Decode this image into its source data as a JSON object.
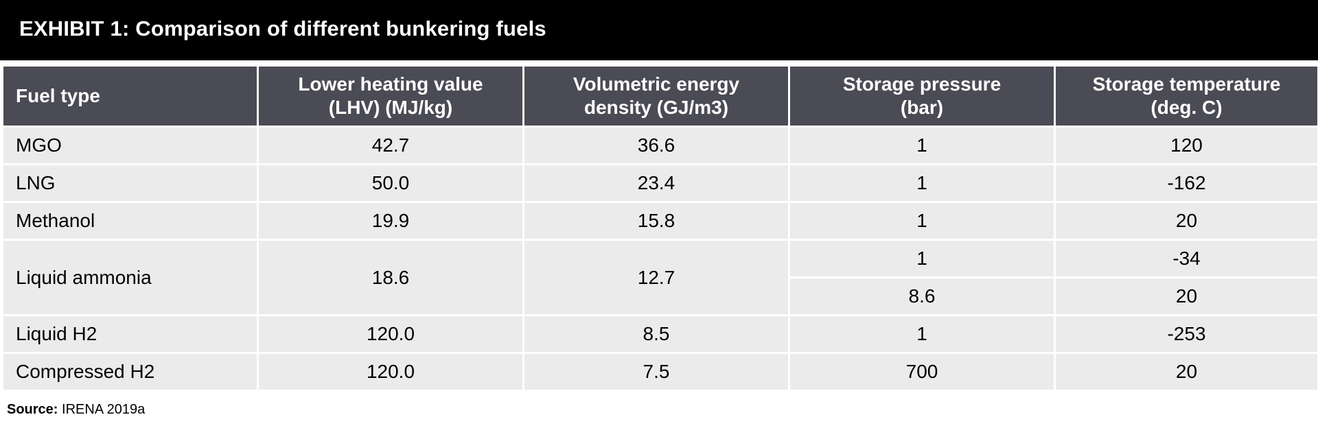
{
  "title": "EXHIBIT 1: Comparison of different bunkering fuels",
  "headers": [
    {
      "line1": "Fuel type",
      "line2": ""
    },
    {
      "line1": "Lower heating value",
      "line2": "(LHV) (MJ/kg)"
    },
    {
      "line1": "Volumetric energy",
      "line2": "density (GJ/m3)"
    },
    {
      "line1": "Storage pressure",
      "line2": "(bar)"
    },
    {
      "line1": "Storage temperature",
      "line2": "(deg. C)"
    }
  ],
  "rows": [
    {
      "fuel": "MGO",
      "lhv": "42.7",
      "ved": "36.6",
      "pressure": "1",
      "temp": "120"
    },
    {
      "fuel": "LNG",
      "lhv": "50.0",
      "ved": "23.4",
      "pressure": "1",
      "temp": "-162"
    },
    {
      "fuel": "Methanol",
      "lhv": "19.9",
      "ved": "15.8",
      "pressure": "1",
      "temp": "20"
    },
    {
      "fuel": "Liquid ammonia",
      "lhv": "18.6",
      "ved": "12.7",
      "conditions": [
        {
          "pressure": "1",
          "temp": "-34"
        },
        {
          "pressure": "8.6",
          "temp": "20"
        }
      ]
    },
    {
      "fuel": "Liquid H2",
      "lhv": "120.0",
      "ved": "8.5",
      "pressure": "1",
      "temp": "-253"
    },
    {
      "fuel": "Compressed H2",
      "lhv": "120.0",
      "ved": "7.5",
      "pressure": "700",
      "temp": "20"
    }
  ],
  "source": {
    "label": "Source:",
    "text": "IRENA 2019a"
  }
}
